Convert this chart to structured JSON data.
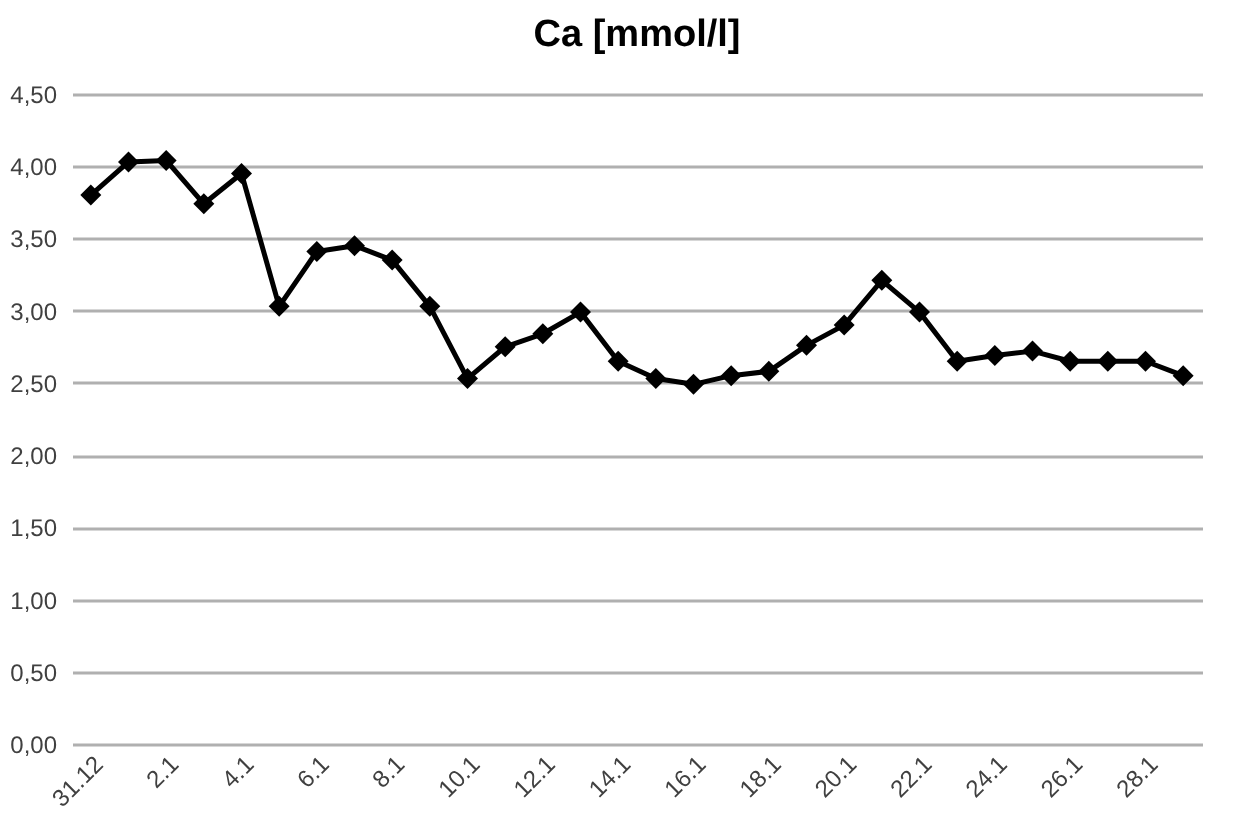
{
  "chart_data": {
    "type": "line",
    "title": "Ca [mmol/l]",
    "categories": [
      "31.12",
      null,
      "2.1",
      null,
      "4.1",
      null,
      "6.1",
      null,
      "8.1",
      null,
      "10.1",
      null,
      "12.1",
      null,
      "14.1",
      null,
      "16.1",
      null,
      "18.1",
      null,
      "20.1",
      null,
      "22.1",
      null,
      "24.1",
      null,
      "26.1",
      null,
      "28.1",
      null
    ],
    "series": [
      {
        "color": "#000000",
        "values": [
          3.8,
          4.03,
          4.04,
          3.74,
          3.95,
          3.03,
          3.41,
          3.45,
          3.35,
          3.03,
          2.53,
          2.75,
          2.84,
          2.99,
          2.65,
          2.53,
          2.49,
          2.55,
          2.58,
          2.76,
          2.9,
          3.21,
          2.99,
          2.65,
          2.69,
          2.72,
          2.65,
          2.65,
          2.65,
          2.55
        ]
      }
    ],
    "ylim": [
      0,
      4.5
    ],
    "yticks": [
      {
        "value": 0,
        "label": "0,00"
      },
      {
        "value": 0.5,
        "label": "0,50"
      },
      {
        "value": 1,
        "label": "1,00"
      },
      {
        "value": 1.5,
        "label": "1,50"
      },
      {
        "value": 2,
        "label": "2,00"
      },
      {
        "value": 2.5,
        "label": "2,50"
      },
      {
        "value": 3,
        "label": "3,00"
      },
      {
        "value": 3.5,
        "label": "3,50"
      },
      {
        "value": 4,
        "label": "4,00"
      },
      {
        "value": 4.5,
        "label": "4,50"
      }
    ],
    "grid": "y",
    "marker": "diamond",
    "line_style": "solid"
  }
}
